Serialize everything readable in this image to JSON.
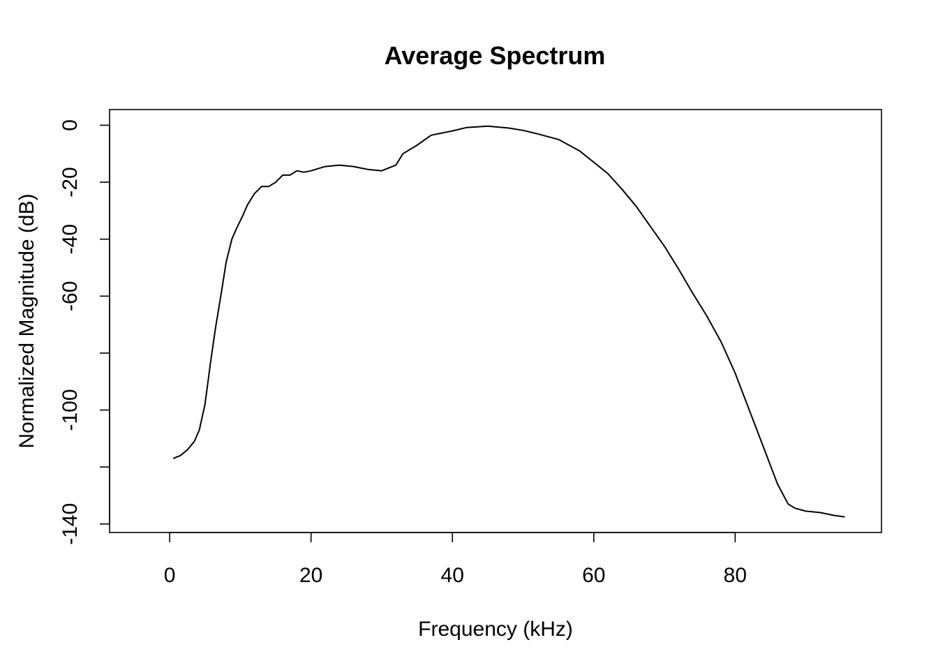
{
  "chart_data": {
    "type": "line",
    "title": "Average Spectrum",
    "xlabel": "Frequency (kHz)",
    "ylabel": "Normalized Magnitude (dB)",
    "xlim": [
      -8.5,
      100.7
    ],
    "ylim": [
      -143,
      5.5
    ],
    "x_ticks": [
      0,
      20,
      40,
      60,
      80
    ],
    "x_tick_labels": [
      "0",
      "20",
      "40",
      "60",
      "80"
    ],
    "y_ticks": [
      0,
      -20,
      -40,
      -60,
      -80,
      -100,
      -120,
      -140
    ],
    "y_tick_labels": [
      "0",
      "-20",
      "-40",
      "-60",
      "",
      "-100",
      "",
      "-140"
    ],
    "grid": false,
    "series": [
      {
        "color": "#000000",
        "x": [
          0.5,
          1.5,
          2.5,
          3.5,
          4.2,
          5.0,
          5.8,
          6.5,
          7.3,
          8.0,
          8.8,
          9.5,
          10.3,
          11.0,
          12.0,
          13.0,
          14.0,
          15.0,
          16.0,
          17.0,
          18.0,
          19.0,
          20.0,
          22.0,
          24.0,
          26.0,
          28.0,
          30.0,
          32.0,
          33.0,
          35.0,
          37.0,
          40.0,
          42.0,
          45.0,
          48.0,
          50.0,
          52.0,
          55.0,
          58.0,
          60.0,
          62.0,
          64.0,
          66.0,
          68.0,
          70.0,
          72.0,
          74.0,
          76.0,
          78.0,
          80.0,
          82.0,
          84.0,
          86.0,
          87.5,
          88.5,
          90.0,
          92.0,
          94.0,
          95.5
        ],
        "y": [
          -117,
          -116,
          -114,
          -111,
          -107,
          -98,
          -83,
          -71,
          -59,
          -48,
          -40,
          -36,
          -32,
          -28,
          -24,
          -21.5,
          -21.5,
          -20,
          -17.5,
          -17.5,
          -16,
          -16.5,
          -16,
          -14.5,
          -14,
          -14.5,
          -15.5,
          -16,
          -14,
          -10,
          -7,
          -3.5,
          -2,
          -0.8,
          -0.3,
          -1,
          -1.8,
          -3,
          -5,
          -9,
          -13,
          -17,
          -22.5,
          -28.5,
          -35.5,
          -42.5,
          -50.5,
          -59,
          -67,
          -76,
          -87,
          -100,
          -113,
          -126,
          -133,
          -134.5,
          -135.5,
          -136,
          -137,
          -137.5
        ]
      }
    ]
  }
}
